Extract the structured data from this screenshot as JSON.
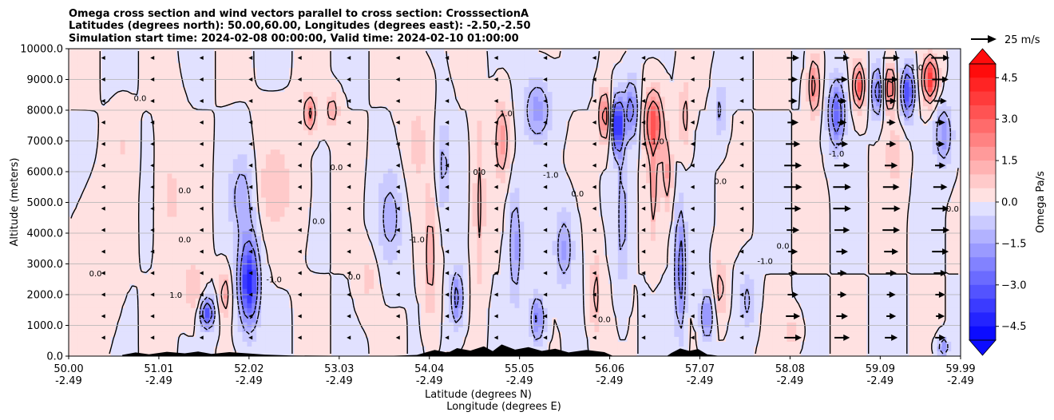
{
  "chart_data": {
    "type": "heatmap",
    "title_lines": [
      "Omega cross section and wind vectors parallel to cross section: CrosssectionA",
      "Latitudes (degrees north): 50.00,60.00, Longitudes (degrees east): -2.50,-2.50",
      "Simulation start time: 2024-02-08 00:00:00, Valid time: 2024-02-10 01:00:00"
    ],
    "xlabel_lines": [
      "Latitude (degrees N)",
      "Longitude (degrees E)"
    ],
    "ylabel": "Altitude (meters)",
    "xlim": [
      50.0,
      59.99
    ],
    "ylim": [
      0,
      10000
    ],
    "x_ticks": [
      {
        "lat": "50.00",
        "lon": "-2.49",
        "value": 50.0
      },
      {
        "lat": "51.01",
        "lon": "-2.49",
        "value": 51.01
      },
      {
        "lat": "52.02",
        "lon": "-2.49",
        "value": 52.02
      },
      {
        "lat": "53.03",
        "lon": "-2.49",
        "value": 53.03
      },
      {
        "lat": "54.04",
        "lon": "-2.49",
        "value": 54.04
      },
      {
        "lat": "55.05",
        "lon": "-2.49",
        "value": 55.05
      },
      {
        "lat": "56.06",
        "lon": "-2.49",
        "value": 56.06
      },
      {
        "lat": "57.07",
        "lon": "-2.49",
        "value": 57.07
      },
      {
        "lat": "58.08",
        "lon": "-2.49",
        "value": 58.08
      },
      {
        "lat": "59.09",
        "lon": "-2.49",
        "value": 59.09
      },
      {
        "lat": "59.99",
        "lon": "-2.49",
        "value": 59.99
      }
    ],
    "y_ticks": [
      {
        "label": "0.0",
        "value": 0
      },
      {
        "label": "1000.0",
        "value": 1000
      },
      {
        "label": "2000.0",
        "value": 2000
      },
      {
        "label": "3000.0",
        "value": 3000
      },
      {
        "label": "4000.0",
        "value": 4000
      },
      {
        "label": "5000.0",
        "value": 5000
      },
      {
        "label": "6000.0",
        "value": 6000
      },
      {
        "label": "7000.0",
        "value": 7000
      },
      {
        "label": "8000.0",
        "value": 8000
      },
      {
        "label": "9000.0",
        "value": 9000
      },
      {
        "label": "10000.0",
        "value": 10000
      }
    ],
    "grid": "horizontal",
    "colorbar": {
      "label": "Omega Pa/s",
      "range": [
        -5.0,
        5.0
      ],
      "extend": "both",
      "n_levels": 20,
      "ticks": [
        {
          "label": "4.5",
          "value": 4.5
        },
        {
          "label": "3.0",
          "value": 3.0
        },
        {
          "label": "1.5",
          "value": 1.5
        },
        {
          "label": "0.0",
          "value": 0.0
        },
        {
          "label": "−1.5",
          "value": -1.5
        },
        {
          "label": "−3.0",
          "value": -3.0
        },
        {
          "label": "−4.5",
          "value": -4.5
        }
      ],
      "negative_color": "#0000ff",
      "positive_color": "#ff0000",
      "mid_color": "#ffffff"
    },
    "wind_key": {
      "label": "25 m/s",
      "speed": 25
    },
    "omega_features": [
      {
        "lat": 51.55,
        "z": 1400,
        "value": -3.2,
        "w_lat": 0.08,
        "w_z": 500
      },
      {
        "lat": 51.75,
        "z": 2000,
        "value": 1.6,
        "w_lat": 0.06,
        "w_z": 700
      },
      {
        "lat": 52.02,
        "z": 2400,
        "value": -4.3,
        "w_lat": 0.11,
        "w_z": 1400
      },
      {
        "lat": 51.95,
        "z": 5200,
        "value": -1.4,
        "w_lat": 0.15,
        "w_z": 1400
      },
      {
        "lat": 52.3,
        "z": 5500,
        "value": 0.8,
        "w_lat": 0.25,
        "w_z": 1600
      },
      {
        "lat": 51.15,
        "z": 5200,
        "value": 0.6,
        "w_lat": 0.12,
        "w_z": 2200
      },
      {
        "lat": 50.6,
        "z": 6800,
        "value": 0.5,
        "w_lat": 0.1,
        "w_z": 1000
      },
      {
        "lat": 51.4,
        "z": 2200,
        "value": 1.0,
        "w_lat": 0.1,
        "w_z": 900
      },
      {
        "lat": 52.7,
        "z": 7900,
        "value": 2.2,
        "w_lat": 0.07,
        "w_z": 600
      },
      {
        "lat": 52.95,
        "z": 8000,
        "value": 1.6,
        "w_lat": 0.07,
        "w_z": 500
      },
      {
        "lat": 53.6,
        "z": 4500,
        "value": -1.3,
        "w_lat": 0.14,
        "w_z": 1500
      },
      {
        "lat": 53.35,
        "z": 2500,
        "value": 0.7,
        "w_lat": 0.1,
        "w_z": 900
      },
      {
        "lat": 54.05,
        "z": 3200,
        "value": 1.4,
        "w_lat": 0.07,
        "w_z": 2000
      },
      {
        "lat": 54.2,
        "z": 6200,
        "value": -1.2,
        "w_lat": 0.08,
        "w_z": 1500
      },
      {
        "lat": 54.35,
        "z": 1900,
        "value": -2.4,
        "w_lat": 0.07,
        "w_z": 900
      },
      {
        "lat": 54.6,
        "z": 5000,
        "value": 1.2,
        "w_lat": 0.06,
        "w_z": 2800
      },
      {
        "lat": 54.85,
        "z": 7000,
        "value": 1.8,
        "w_lat": 0.08,
        "w_z": 1200
      },
      {
        "lat": 55.0,
        "z": 3600,
        "value": -1.8,
        "w_lat": 0.07,
        "w_z": 1800
      },
      {
        "lat": 55.25,
        "z": 1200,
        "value": -2.2,
        "w_lat": 0.08,
        "w_z": 800
      },
      {
        "lat": 55.55,
        "z": 3500,
        "value": -1.6,
        "w_lat": 0.1,
        "w_z": 1200
      },
      {
        "lat": 55.25,
        "z": 8000,
        "value": -1.8,
        "w_lat": 0.15,
        "w_z": 1000
      },
      {
        "lat": 55.9,
        "z": 2000,
        "value": 1.3,
        "w_lat": 0.06,
        "w_z": 1300
      },
      {
        "lat": 56.0,
        "z": 7800,
        "value": 2.6,
        "w_lat": 0.06,
        "w_z": 800
      },
      {
        "lat": 56.15,
        "z": 7500,
        "value": -4.4,
        "w_lat": 0.06,
        "w_z": 900
      },
      {
        "lat": 56.2,
        "z": 4500,
        "value": -1.4,
        "w_lat": 0.06,
        "w_z": 2200
      },
      {
        "lat": 56.3,
        "z": 8000,
        "value": -2.4,
        "w_lat": 0.08,
        "w_z": 1000
      },
      {
        "lat": 56.55,
        "z": 7600,
        "value": 3.2,
        "w_lat": 0.1,
        "w_z": 1000
      },
      {
        "lat": 56.55,
        "z": 5500,
        "value": 1.5,
        "w_lat": 0.05,
        "w_z": 1600
      },
      {
        "lat": 56.85,
        "z": 2800,
        "value": -2.6,
        "w_lat": 0.06,
        "w_z": 2000
      },
      {
        "lat": 56.7,
        "z": 6000,
        "value": 1.5,
        "w_lat": 0.06,
        "w_z": 1200
      },
      {
        "lat": 56.9,
        "z": 7800,
        "value": 1.3,
        "w_lat": 0.06,
        "w_z": 1100
      },
      {
        "lat": 57.15,
        "z": 1300,
        "value": -2.2,
        "w_lat": 0.07,
        "w_z": 800
      },
      {
        "lat": 57.3,
        "z": 2200,
        "value": 1.4,
        "w_lat": 0.06,
        "w_z": 900
      },
      {
        "lat": 57.6,
        "z": 1800,
        "value": -1.2,
        "w_lat": 0.08,
        "w_z": 900
      },
      {
        "lat": 57.3,
        "z": 8000,
        "value": -1.2,
        "w_lat": 0.06,
        "w_z": 900
      },
      {
        "lat": 58.35,
        "z": 8800,
        "value": 2.5,
        "w_lat": 0.06,
        "w_z": 900
      },
      {
        "lat": 58.6,
        "z": 7900,
        "value": -2.8,
        "w_lat": 0.09,
        "w_z": 1100
      },
      {
        "lat": 58.85,
        "z": 8800,
        "value": 3.2,
        "w_lat": 0.06,
        "w_z": 700
      },
      {
        "lat": 59.05,
        "z": 8600,
        "value": -2.8,
        "w_lat": 0.05,
        "w_z": 800
      },
      {
        "lat": 59.2,
        "z": 8700,
        "value": 3.0,
        "w_lat": 0.05,
        "w_z": 700
      },
      {
        "lat": 59.4,
        "z": 8600,
        "value": -3.5,
        "w_lat": 0.07,
        "w_z": 800
      },
      {
        "lat": 59.65,
        "z": 9000,
        "value": 3.8,
        "w_lat": 0.08,
        "w_z": 700
      },
      {
        "lat": 59.8,
        "z": 7200,
        "value": -1.8,
        "w_lat": 0.1,
        "w_z": 1000
      },
      {
        "lat": 59.25,
        "z": 6500,
        "value": 0.9,
        "w_lat": 0.1,
        "w_z": 1000
      },
      {
        "lat": 58.1,
        "z": 800,
        "value": 0.8,
        "w_lat": 0.08,
        "w_z": 500
      },
      {
        "lat": 59.8,
        "z": 300,
        "value": -2.0,
        "w_lat": 0.06,
        "w_z": 300
      },
      {
        "lat": 53.9,
        "z": 7000,
        "value": 0.6,
        "w_lat": 0.15,
        "w_z": 2000
      },
      {
        "lat": 50.3,
        "z": 2800,
        "value": 0.4,
        "w_lat": 0.2,
        "w_z": 2000
      }
    ],
    "terrain": [
      {
        "lat": 50.6,
        "z": 40
      },
      {
        "lat": 50.75,
        "z": 120
      },
      {
        "lat": 50.9,
        "z": 60
      },
      {
        "lat": 51.1,
        "z": 140
      },
      {
        "lat": 51.3,
        "z": 90
      },
      {
        "lat": 51.45,
        "z": 150
      },
      {
        "lat": 51.6,
        "z": 70
      },
      {
        "lat": 51.8,
        "z": 130
      },
      {
        "lat": 52.0,
        "z": 90
      },
      {
        "lat": 52.2,
        "z": 50
      },
      {
        "lat": 52.5,
        "z": 20
      },
      {
        "lat": 53.5,
        "z": 0
      },
      {
        "lat": 53.9,
        "z": 40
      },
      {
        "lat": 54.1,
        "z": 200
      },
      {
        "lat": 54.25,
        "z": 110
      },
      {
        "lat": 54.35,
        "z": 260
      },
      {
        "lat": 54.5,
        "z": 180
      },
      {
        "lat": 54.65,
        "z": 320
      },
      {
        "lat": 54.75,
        "z": 160
      },
      {
        "lat": 54.85,
        "z": 380
      },
      {
        "lat": 55.0,
        "z": 210
      },
      {
        "lat": 55.15,
        "z": 290
      },
      {
        "lat": 55.3,
        "z": 170
      },
      {
        "lat": 55.45,
        "z": 240
      },
      {
        "lat": 55.6,
        "z": 120
      },
      {
        "lat": 55.8,
        "z": 200
      },
      {
        "lat": 56.0,
        "z": 130
      },
      {
        "lat": 56.1,
        "z": 0
      },
      {
        "lat": 56.7,
        "z": 0
      },
      {
        "lat": 56.75,
        "z": 100
      },
      {
        "lat": 56.85,
        "z": 250
      },
      {
        "lat": 56.95,
        "z": 170
      },
      {
        "lat": 57.05,
        "z": 230
      },
      {
        "lat": 57.15,
        "z": 60
      },
      {
        "lat": 57.3,
        "z": 0
      }
    ],
    "contour_labels": [
      {
        "text": "0.0",
        "lat": 53.0,
        "z": 6050
      },
      {
        "text": "0.0",
        "lat": 50.3,
        "z": 2600
      },
      {
        "text": "0.0",
        "lat": 50.8,
        "z": 8300
      },
      {
        "text": "0.0",
        "lat": 51.3,
        "z": 5300
      },
      {
        "text": "0.0",
        "lat": 51.3,
        "z": 3700
      },
      {
        "text": "0.0",
        "lat": 52.8,
        "z": 4300
      },
      {
        "text": "0.0",
        "lat": 53.2,
        "z": 2500
      },
      {
        "text": "0.0",
        "lat": 54.6,
        "z": 5900
      },
      {
        "text": "0.0",
        "lat": 55.7,
        "z": 5200
      },
      {
        "text": "0.0",
        "lat": 56.0,
        "z": 1100
      },
      {
        "text": "0.0",
        "lat": 57.3,
        "z": 5600
      },
      {
        "text": "0.0",
        "lat": 58.0,
        "z": 3500
      },
      {
        "text": "0.0",
        "lat": 59.9,
        "z": 4700
      },
      {
        "text": "1.0",
        "lat": 51.2,
        "z": 1900
      },
      {
        "text": "-1.0",
        "lat": 52.3,
        "z": 2400
      },
      {
        "text": "-1.0",
        "lat": 53.9,
        "z": 3700
      },
      {
        "text": "1.0",
        "lat": 54.9,
        "z": 7800
      },
      {
        "text": "-1.0",
        "lat": 55.4,
        "z": 5800
      },
      {
        "text": "1.0",
        "lat": 56.6,
        "z": 6900
      },
      {
        "text": "-1.0",
        "lat": 57.8,
        "z": 3000
      },
      {
        "text": "-1.0",
        "lat": 58.6,
        "z": 6500
      },
      {
        "text": "1.0",
        "lat": 59.5,
        "z": 9300
      }
    ]
  }
}
